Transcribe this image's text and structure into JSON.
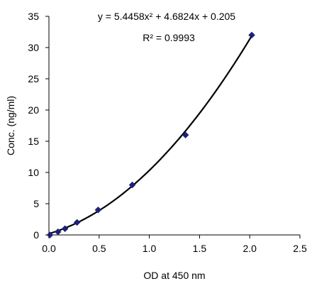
{
  "chart_data": {
    "type": "scatter",
    "title": "",
    "xlabel": "OD at 450 nm",
    "ylabel": "Conc. (ng/ml)",
    "xlim": [
      0,
      2.5
    ],
    "ylim": [
      0,
      35
    ],
    "x_ticks": [
      0,
      0.5,
      1,
      1.5,
      2,
      2.5
    ],
    "x_tick_labels": [
      "0.0",
      "0.5",
      "1.0",
      "1.5",
      "2.0",
      "2.5"
    ],
    "y_ticks": [
      0,
      5,
      10,
      15,
      20,
      25,
      30,
      35
    ],
    "y_tick_labels": [
      "0",
      "5",
      "10",
      "15",
      "20",
      "25",
      "30",
      "35"
    ],
    "grid": false,
    "legend": "none",
    "series": [
      {
        "points": [
          {
            "x": 0.01,
            "y": 0
          },
          {
            "x": 0.09,
            "y": 0.5
          },
          {
            "x": 0.16,
            "y": 1
          },
          {
            "x": 0.28,
            "y": 2
          },
          {
            "x": 0.49,
            "y": 4
          },
          {
            "x": 0.83,
            "y": 8
          },
          {
            "x": 1.36,
            "y": 16
          },
          {
            "x": 2.02,
            "y": 32
          }
        ],
        "color": "#1F1F7A",
        "marker": "diamond"
      }
    ],
    "trendline": {
      "type": "polynomial",
      "coefficients": {
        "a": 5.4458,
        "b": 4.6824,
        "c": 0.205
      },
      "x_range": [
        0,
        2.02
      ],
      "color": "#000000"
    },
    "annotations": {
      "equation": "y = 5.4458x² + 4.6824x + 0.205",
      "r_squared": "R² = 0.9993"
    }
  }
}
